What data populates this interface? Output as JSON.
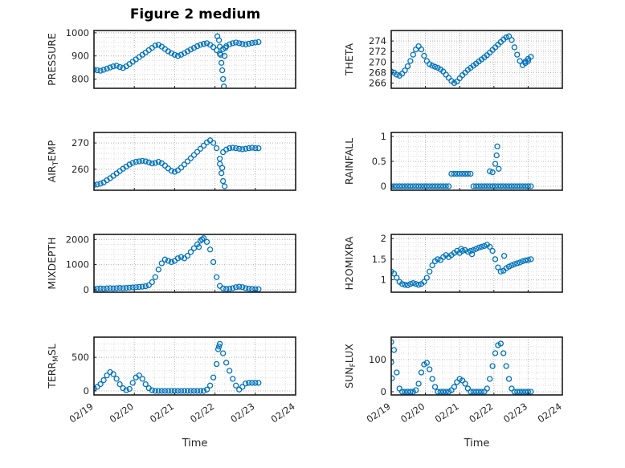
{
  "figure": {
    "title": "Figure 2 medium",
    "marker_color": "#0072BD",
    "x_axis": {
      "label": "Time",
      "lim": [
        0,
        5
      ],
      "ticks": [
        0,
        1,
        2,
        3,
        4,
        5
      ],
      "labels": [
        "02/19",
        "02/20",
        "02/21",
        "02/22",
        "02/23",
        "02/24"
      ]
    }
  },
  "chart_data": [
    {
      "type": "scatter",
      "marker": "o",
      "label_pre": "PRESSURE",
      "label_sub": "",
      "label_post": "",
      "ylim": [
        760,
        1010
      ],
      "yticks": [
        800,
        900,
        1000
      ],
      "x0": 0,
      "dx": 0.08,
      "y": [
        840,
        838,
        836,
        840,
        845,
        850,
        855,
        858,
        852,
        848,
        855,
        865,
        875,
        885,
        895,
        905,
        915,
        925,
        935,
        945,
        948,
        940,
        930,
        920,
        912,
        905,
        900,
        905,
        912,
        920,
        928,
        935,
        942,
        948,
        952,
        955,
        948,
        938,
        925,
        910,
        930,
        942,
        950,
        955,
        958,
        955,
        952,
        950,
        953,
        956,
        958,
        960
      ],
      "extra": [
        [
          3.06,
          985
        ],
        [
          3.1,
          968
        ],
        [
          3.12,
          940
        ],
        [
          3.14,
          905
        ],
        [
          3.16,
          870
        ],
        [
          3.18,
          838
        ],
        [
          3.2,
          800
        ],
        [
          3.22,
          768
        ],
        [
          3.24,
          900
        ],
        [
          3.26,
          935
        ]
      ]
    },
    {
      "type": "scatter",
      "marker": "o",
      "label_pre": "THETA",
      "label_sub": "",
      "label_post": "",
      "ylim": [
        265,
        276
      ],
      "yticks": [
        266,
        268,
        270,
        272,
        274
      ],
      "x0": 0,
      "dx": 0.08,
      "y": [
        268.2,
        268.0,
        267.6,
        267.4,
        267.8,
        268.4,
        269.2,
        270.2,
        271.4,
        272.4,
        273.0,
        272.4,
        271.2,
        270.2,
        269.6,
        269.3,
        269.1,
        268.9,
        268.6,
        268.2,
        267.6,
        267.0,
        266.4,
        266.0,
        266.3,
        266.9,
        267.5,
        268.0,
        268.5,
        268.9,
        269.3,
        269.7,
        270.1,
        270.5,
        270.9,
        271.3,
        271.8,
        272.3,
        272.8,
        273.3,
        273.8,
        274.3,
        274.7,
        274.9,
        274.2,
        272.8,
        271.4,
        270.2,
        269.4,
        269.8,
        270.6,
        271.0
      ],
      "extra": [
        [
          3.92,
          270.1
        ],
        [
          4.0,
          270.2
        ]
      ]
    },
    {
      "type": "scatter",
      "marker": "o",
      "label_pre": "AIR",
      "label_sub": "T",
      "label_post": "EMP",
      "ylim": [
        252,
        274
      ],
      "yticks": [
        260,
        270
      ],
      "x0": 0,
      "dx": 0.08,
      "y": [
        254,
        254.2,
        254.5,
        255,
        255.8,
        256.6,
        257.5,
        258.4,
        259.3,
        260.2,
        261,
        261.8,
        262.4,
        262.8,
        263,
        263.2,
        263,
        262.6,
        262.2,
        262.4,
        262.8,
        262.3,
        261.4,
        260.3,
        259.4,
        259,
        259.6,
        260.6,
        261.8,
        263,
        264.2,
        265.4,
        266.6,
        267.8,
        269,
        270.2,
        271,
        270,
        268,
        264,
        266.5,
        267.5,
        268,
        268.2,
        268,
        267.8,
        267.6,
        267.8,
        268,
        268.2,
        268,
        268
      ],
      "extra": [
        [
          3.12,
          262
        ],
        [
          3.16,
          258.5
        ],
        [
          3.2,
          255.5
        ],
        [
          3.24,
          253.5
        ],
        [
          3.18,
          260.5
        ]
      ]
    },
    {
      "type": "scatter",
      "marker": "o",
      "label_pre": "RAINFALL",
      "label_sub": "",
      "label_post": "",
      "ylim": [
        -0.08,
        1.08
      ],
      "yticks": [
        0,
        0.5,
        1
      ],
      "x0": 0,
      "dx": 0.08,
      "y": [
        0,
        0,
        0,
        0,
        0,
        0,
        0,
        0,
        0,
        0,
        0,
        0,
        0,
        0,
        0,
        0,
        0,
        0,
        0,
        0,
        0,
        0,
        0.25,
        0.25,
        0.25,
        0.25,
        0.25,
        0.25,
        0.25,
        0.25,
        0,
        0,
        0,
        0,
        0,
        0,
        0,
        0,
        0,
        0,
        0,
        0,
        0,
        0,
        0,
        0,
        0,
        0,
        0,
        0,
        0,
        0
      ],
      "extra": [
        [
          2.88,
          0.3
        ],
        [
          2.96,
          0.28
        ],
        [
          3.04,
          0.45
        ],
        [
          3.08,
          0.62
        ],
        [
          3.1,
          0.8
        ],
        [
          3.14,
          0.35
        ]
      ]
    },
    {
      "type": "scatter",
      "marker": "o",
      "label_pre": "MIXDEPTH",
      "label_sub": "",
      "label_post": "",
      "ylim": [
        -100,
        2200
      ],
      "yticks": [
        0,
        1000,
        2000
      ],
      "x0": 0,
      "dx": 0.08,
      "y": [
        30,
        40,
        50,
        40,
        50,
        60,
        50,
        60,
        70,
        60,
        70,
        80,
        90,
        100,
        110,
        120,
        140,
        180,
        300,
        500,
        800,
        1050,
        1200,
        1150,
        1100,
        1150,
        1250,
        1300,
        1250,
        1350,
        1500,
        1650,
        1800,
        1950,
        2050,
        1900,
        1600,
        1100,
        500,
        150,
        50,
        30,
        40,
        60,
        100,
        120,
        100,
        60,
        40,
        30,
        20,
        20
      ],
      "extra": [
        [
          2.6,
          1700
        ],
        [
          2.68,
          2000
        ]
      ]
    },
    {
      "type": "scatter",
      "marker": "o",
      "label_pre": "H2OMIXRA",
      "label_sub": "",
      "label_post": "",
      "ylim": [
        0.7,
        2.1
      ],
      "yticks": [
        1,
        1.5,
        2
      ],
      "x0": 0,
      "dx": 0.08,
      "y": [
        1.2,
        1.15,
        1.05,
        0.95,
        0.9,
        0.88,
        0.87,
        0.9,
        0.92,
        0.9,
        0.88,
        0.9,
        0.95,
        1.05,
        1.2,
        1.35,
        1.45,
        1.5,
        1.48,
        1.55,
        1.6,
        1.55,
        1.6,
        1.65,
        1.7,
        1.65,
        1.7,
        1.72,
        1.68,
        1.7,
        1.72,
        1.75,
        1.78,
        1.8,
        1.82,
        1.85,
        1.8,
        1.7,
        1.5,
        1.3,
        1.2,
        1.22,
        1.28,
        1.32,
        1.35,
        1.38,
        1.4,
        1.42,
        1.45,
        1.47,
        1.48,
        1.5
      ],
      "extra": [
        [
          2.04,
          1.75
        ],
        [
          2.36,
          1.62
        ],
        [
          3.3,
          1.58
        ]
      ]
    },
    {
      "type": "scatter",
      "marker": "o",
      "label_pre": "TERR",
      "label_sub": "M",
      "label_post": "SL",
      "ylim": [
        -60,
        800
      ],
      "yticks": [
        0,
        500
      ],
      "x0": 0,
      "dx": 0.08,
      "y": [
        40,
        60,
        100,
        160,
        230,
        280,
        250,
        180,
        100,
        40,
        10,
        30,
        120,
        200,
        230,
        180,
        100,
        40,
        10,
        0,
        0,
        0,
        0,
        0,
        0,
        0,
        0,
        0,
        0,
        0,
        0,
        0,
        0,
        0,
        0,
        20,
        80,
        200,
        400,
        700,
        560,
        420,
        300,
        180,
        80,
        20,
        60,
        110,
        120,
        120,
        120,
        120
      ],
      "extra": [
        [
          3.08,
          620
        ],
        [
          3.1,
          660
        ]
      ]
    },
    {
      "type": "scatter",
      "marker": "o",
      "label_pre": "SUN",
      "label_sub": "F",
      "label_post": "LUX",
      "ylim": [
        -10,
        170
      ],
      "yticks": [
        0,
        100
      ],
      "x0": 0,
      "dx": 0.08,
      "y": [
        155,
        130,
        60,
        10,
        0,
        0,
        0,
        0,
        0,
        5,
        25,
        60,
        85,
        90,
        70,
        40,
        15,
        0,
        0,
        0,
        0,
        0,
        5,
        15,
        30,
        40,
        35,
        25,
        10,
        0,
        0,
        0,
        0,
        0,
        0,
        10,
        40,
        80,
        120,
        145,
        150,
        120,
        80,
        40,
        10,
        0,
        0,
        0,
        0,
        0,
        0,
        0
      ],
      "extra": [
        [
          0.0,
          92
        ],
        [
          0.02,
          42
        ]
      ]
    }
  ]
}
